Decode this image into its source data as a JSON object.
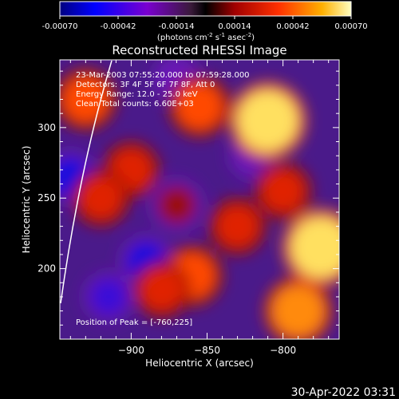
{
  "chart_data": {
    "type": "heatmap",
    "title": "Reconstructed RHESSI Image",
    "xlabel": "Heliocentric X (arcsec)",
    "ylabel": "Heliocentric Y (arcsec)",
    "xlim": [
      -947,
      -763
    ],
    "ylim": [
      150,
      348
    ],
    "x_ticks": [
      -900,
      -850,
      -800
    ],
    "y_ticks": [
      200,
      250,
      300
    ],
    "colorbar": {
      "min": -0.0007,
      "max": 0.0007,
      "ticks": [
        "-0.00070",
        "-0.00042",
        "-0.00014",
        "0.00014",
        "0.00042",
        "0.00070"
      ],
      "unit_base": "(photons cm",
      "unit_exp1": "-2",
      "unit_mid": " s",
      "unit_exp2": "-1",
      "unit_mid2": " asec",
      "unit_exp3": "-2",
      "unit_end": ")"
    },
    "annotations": [
      "23-Mar-2003 07:55:20.000 to 07:59:28.000",
      "Detectors: 3F 4F 5F 6F 7F 8F, Att 0",
      "Energy Range: 12.0 - 25.0 keV",
      "Clean     Total counts: 6.60E+03"
    ],
    "peak_label": "Position of Peak = [-760,225]",
    "peak": [
      -760,
      225
    ],
    "timestamp": "30-Apr-2022 03:31",
    "bright_regions": [
      {
        "x": -810,
        "y": 305,
        "level": 0.0007
      },
      {
        "x": -775,
        "y": 215,
        "level": 0.0007
      },
      {
        "x": -790,
        "y": 170,
        "level": 0.0005
      },
      {
        "x": -930,
        "y": 320,
        "level": 0.0004
      },
      {
        "x": -855,
        "y": 315,
        "level": 0.0004
      },
      {
        "x": -900,
        "y": 270,
        "level": 0.0003
      },
      {
        "x": -860,
        "y": 195,
        "level": 0.0004
      },
      {
        "x": -830,
        "y": 230,
        "level": 0.0003
      },
      {
        "x": -920,
        "y": 250,
        "level": 0.0003
      },
      {
        "x": -880,
        "y": 185,
        "level": 0.0003
      },
      {
        "x": -800,
        "y": 255,
        "level": 0.0003
      },
      {
        "x": -870,
        "y": 245,
        "level": 0.0002
      }
    ],
    "dark_regions": [
      {
        "x": -940,
        "y": 265,
        "level": -0.0005
      },
      {
        "x": -890,
        "y": 205,
        "level": -0.0005
      },
      {
        "x": -915,
        "y": 180,
        "level": -0.0004
      },
      {
        "x": -870,
        "y": 335,
        "level": -0.0003
      },
      {
        "x": -820,
        "y": 280,
        "level": -0.0003
      }
    ]
  }
}
